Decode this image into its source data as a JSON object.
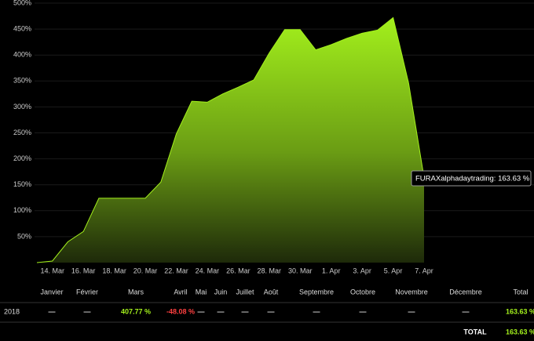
{
  "chart_data": {
    "type": "area",
    "categories": [
      null,
      "14. Mar",
      null,
      "16. Mar",
      null,
      "18. Mar",
      null,
      "20. Mar",
      null,
      "22. Mar",
      null,
      "24. Mar",
      null,
      "26. Mar",
      null,
      "28. Mar",
      null,
      "30. Mar",
      null,
      "1. Apr",
      null,
      "3. Apr",
      null,
      "5. Apr",
      null,
      "7. Apr"
    ],
    "series": [
      {
        "name": "FURAXalphadaytrading",
        "color": "#a3f01c",
        "values": [
          0,
          3,
          40,
          60,
          124,
          124,
          124,
          124,
          155,
          248,
          311,
          309,
          325,
          338,
          352,
          404,
          449,
          449,
          410,
          420,
          432,
          442,
          448,
          472,
          346,
          163.63
        ]
      }
    ],
    "ylim": [
      0,
      500
    ],
    "yticks": [
      {
        "value": 50,
        "label": "50%"
      },
      {
        "value": 100,
        "label": "100%"
      },
      {
        "value": 150,
        "label": "150%"
      },
      {
        "value": 200,
        "label": "200%"
      },
      {
        "value": 250,
        "label": "250%"
      },
      {
        "value": 300,
        "label": "300%"
      },
      {
        "value": 350,
        "label": "350%"
      },
      {
        "value": 400,
        "label": "400%"
      },
      {
        "value": 450,
        "label": "450%"
      },
      {
        "value": 500,
        "label": "500%"
      }
    ],
    "tooltip": "FURAXalphadaytrading: 163.63 %"
  },
  "table": {
    "columns": [
      "Janvier",
      "Février",
      "Mars",
      "Avril",
      "Mai",
      "Juin",
      "Juillet",
      "Août",
      "Septembre",
      "Octobre",
      "Novembre",
      "Décembre",
      "Total"
    ],
    "rows": [
      {
        "label": "2018",
        "cells": [
          "—",
          "—",
          "407.77 %",
          "-48.08 %",
          "—",
          "—",
          "—",
          "—",
          "—",
          "—",
          "—",
          "—",
          "163.63 %"
        ]
      }
    ],
    "total": {
      "label": "TOTAL",
      "value": "163.63 %"
    }
  }
}
